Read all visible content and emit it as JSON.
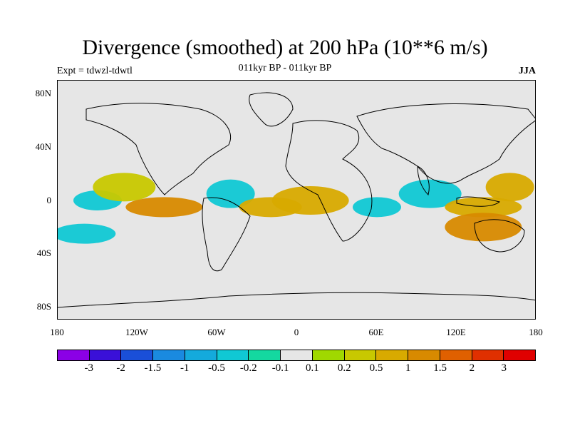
{
  "title": "Divergence (smoothed) at 200 hPa (10**6 m/s)",
  "subtitle": "011kyr BP - 011kyr BP",
  "expt": "Expt = tdwzl-tdwtl",
  "season": "JJA",
  "lat_labels": [
    "80N",
    "40N",
    "0",
    "40S",
    "80S"
  ],
  "lon_labels": [
    "180",
    "120W",
    "60W",
    "0",
    "60E",
    "120E",
    "180"
  ],
  "colorbar": {
    "labels": [
      "-3",
      "-2",
      "-1.5",
      "-1",
      "-0.5",
      "-0.2",
      "-0.1",
      "0.1",
      "0.2",
      "0.5",
      "1",
      "1.5",
      "2",
      "3"
    ],
    "colors": [
      "#8b00e6",
      "#3a10d8",
      "#1a4fd8",
      "#1a8ae0",
      "#14aadc",
      "#10c8d4",
      "#14d8a0",
      "#e6e6e6",
      "#a0d800",
      "#c8c800",
      "#d8aa00",
      "#d88a00",
      "#e06000",
      "#e03000",
      "#e00000"
    ]
  },
  "map_data": {
    "projection": "cylindrical-equidistant",
    "lon_range": [
      -180,
      180
    ],
    "lat_range": [
      -90,
      90
    ],
    "field": "divergence difference",
    "features": [
      {
        "lon": -150,
        "lat": 0,
        "value": -0.5
      },
      {
        "lon": -130,
        "lat": 10,
        "value": 0.2
      },
      {
        "lon": -100,
        "lat": -5,
        "value": 1
      },
      {
        "lon": -50,
        "lat": 5,
        "value": -0.5
      },
      {
        "lon": -20,
        "lat": -5,
        "value": 0.5
      },
      {
        "lon": 10,
        "lat": 0,
        "value": 0.5
      },
      {
        "lon": 60,
        "lat": -5,
        "value": -0.5
      },
      {
        "lon": 100,
        "lat": 5,
        "value": -0.5
      },
      {
        "lon": 140,
        "lat": -5,
        "value": 0.5
      },
      {
        "lon": 160,
        "lat": 10,
        "value": 0.5
      },
      {
        "lon": -160,
        "lat": -25,
        "value": -0.5
      },
      {
        "lon": 140,
        "lat": -20,
        "value": 1
      }
    ]
  }
}
